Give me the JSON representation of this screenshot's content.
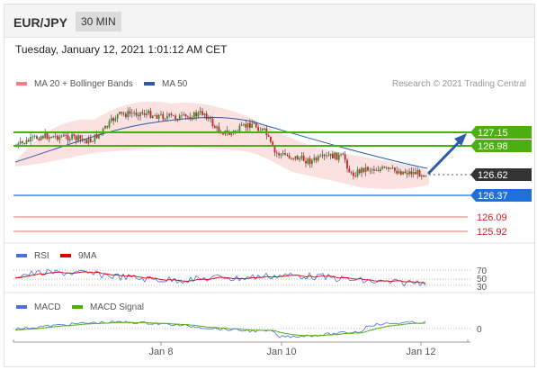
{
  "header": {
    "pair": "EUR/JPY",
    "timeframe": "30 MIN"
  },
  "date_line": "Tuesday, January 12, 2021 1:01:12 AM CET",
  "main_legend": {
    "items": [
      {
        "label": "MA 20 + Bollinger Bands",
        "color": "#f08080"
      },
      {
        "label": "MA 50",
        "color": "#2a5caa"
      }
    ],
    "credit": "Research © 2021 Trading Central"
  },
  "price_levels": [
    {
      "label": "127.15",
      "value": 127.15,
      "bg": "#4caf10",
      "fg": "#ffffff"
    },
    {
      "label": "126.98",
      "value": 126.98,
      "bg": "#4caf10",
      "fg": "#ffffff"
    },
    {
      "label": "126.62",
      "value": 126.62,
      "bg": "#333333",
      "fg": "#ffffff"
    },
    {
      "label": "126.37",
      "value": 126.37,
      "bg": "#1f6fdc",
      "fg": "#ffffff"
    },
    {
      "label": "126.09",
      "value": 126.09,
      "bg": "",
      "fg": "#cc2222"
    },
    {
      "label": "125.92",
      "value": 125.92,
      "bg": "",
      "fg": "#cc2222"
    }
  ],
  "rsi_panel": {
    "legend": [
      {
        "label": "RSI",
        "color": "#4a6fd8"
      },
      {
        "label": "9MA",
        "color": "#dd0000"
      }
    ],
    "levels": [
      "70",
      "50",
      "30"
    ]
  },
  "macd_panel": {
    "legend": [
      {
        "label": "MACD",
        "color": "#4a6fd8"
      },
      {
        "label": "MACD Signal",
        "color": "#4caf10"
      }
    ],
    "levels": [
      "0"
    ]
  },
  "x_axis": {
    "labels": [
      "Jan 8",
      "Jan 10",
      "Jan 12"
    ]
  }
}
